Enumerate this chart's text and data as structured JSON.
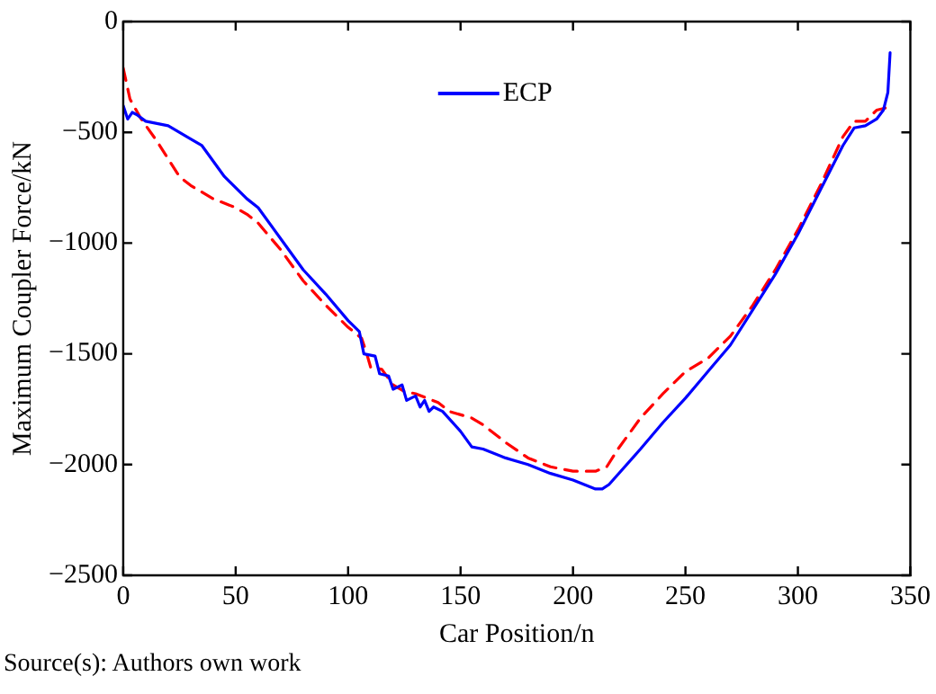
{
  "chart_data": {
    "type": "line",
    "xlabel": "Car Position/n",
    "ylabel": "Maximum Coupler Force/kN",
    "xlim": [
      0,
      350
    ],
    "xticks": [
      0,
      50,
      100,
      150,
      200,
      250,
      300,
      350
    ],
    "ylim": [
      -2500,
      0
    ],
    "yticks": [
      -2500,
      -2000,
      -1500,
      -1000,
      -500,
      0
    ],
    "grid": false,
    "legend": "top",
    "marker": "none",
    "annotations": [
      "Source(s): Authors own work"
    ],
    "series": [
      {
        "name": "ECP",
        "color": "#0000ff",
        "line_style": "solid",
        "x": [
          0,
          2,
          4,
          6,
          10,
          20,
          30,
          35,
          45,
          55,
          60,
          70,
          80,
          90,
          100,
          105,
          107,
          112,
          114,
          118,
          120,
          124,
          126,
          130,
          132,
          134,
          136,
          138,
          142,
          150,
          155,
          160,
          170,
          180,
          190,
          200,
          205,
          210,
          213,
          216,
          230,
          240,
          250,
          260,
          270,
          280,
          290,
          300,
          310,
          320,
          325,
          330,
          335,
          338,
          340,
          341
        ],
        "values": [
          -380,
          -440,
          -410,
          -420,
          -450,
          -470,
          -530,
          -560,
          -700,
          -800,
          -840,
          -980,
          -1120,
          -1230,
          -1350,
          -1400,
          -1500,
          -1510,
          -1590,
          -1600,
          -1660,
          -1640,
          -1710,
          -1690,
          -1740,
          -1710,
          -1760,
          -1740,
          -1760,
          -1850,
          -1920,
          -1930,
          -1970,
          -2000,
          -2040,
          -2070,
          -2090,
          -2110,
          -2110,
          -2090,
          -1930,
          -1810,
          -1700,
          -1580,
          -1460,
          -1300,
          -1140,
          -960,
          -760,
          -560,
          -480,
          -470,
          -440,
          -400,
          -320,
          -140
        ]
      },
      {
        "color": "#ff0000",
        "line_style": "dashed",
        "x": [
          0,
          3,
          8,
          15,
          25,
          30,
          40,
          50,
          55,
          60,
          70,
          80,
          90,
          100,
          106,
          108,
          110,
          115,
          120,
          125,
          130,
          135,
          140,
          145,
          155,
          160,
          170,
          180,
          190,
          200,
          210,
          215,
          220,
          230,
          240,
          250,
          260,
          270,
          280,
          290,
          300,
          310,
          320,
          325,
          330,
          335,
          339
        ],
        "values": [
          -210,
          -350,
          -440,
          -540,
          -700,
          -740,
          -800,
          -840,
          -870,
          -910,
          -1030,
          -1170,
          -1280,
          -1380,
          -1430,
          -1490,
          -1560,
          -1570,
          -1640,
          -1670,
          -1680,
          -1700,
          -1720,
          -1760,
          -1790,
          -1820,
          -1900,
          -1970,
          -2010,
          -2030,
          -2030,
          -2010,
          -1930,
          -1790,
          -1680,
          -1580,
          -1520,
          -1420,
          -1280,
          -1120,
          -940,
          -740,
          -520,
          -450,
          -450,
          -400,
          -390
        ]
      }
    ]
  }
}
